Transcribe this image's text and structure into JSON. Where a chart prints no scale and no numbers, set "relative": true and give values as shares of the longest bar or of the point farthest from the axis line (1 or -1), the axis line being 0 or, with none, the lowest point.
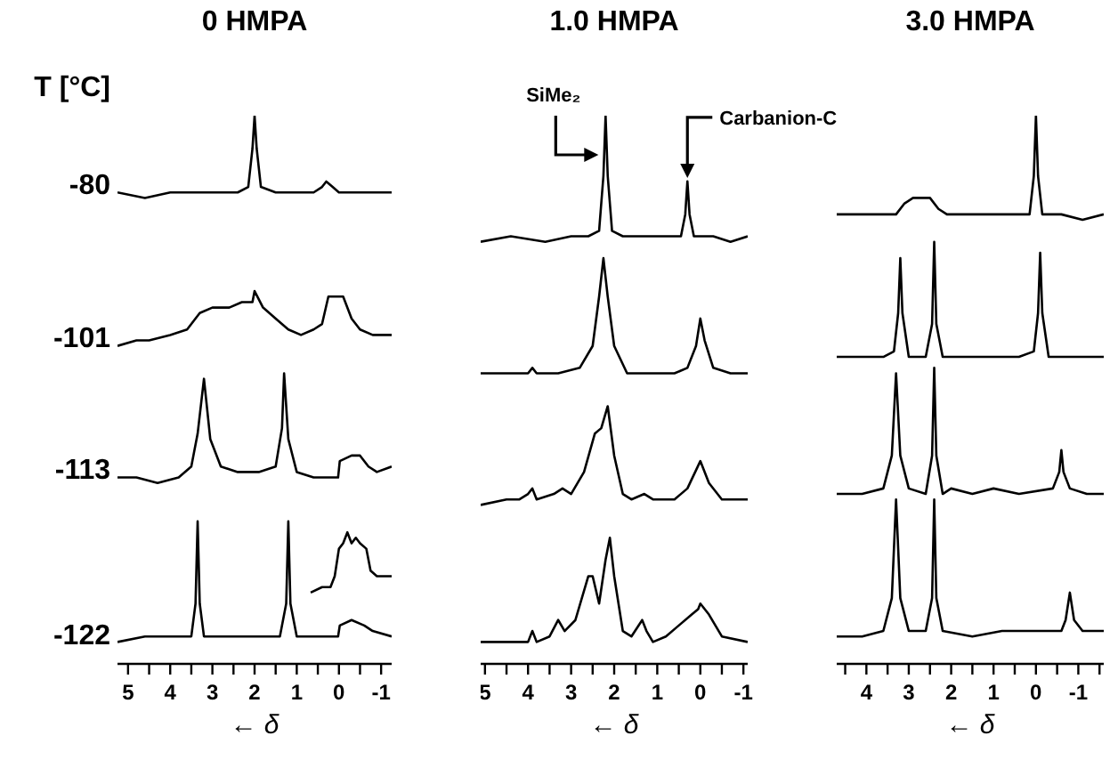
{
  "chart_data": [
    {
      "type": "line",
      "relative": true,
      "title": "0 HMPA",
      "xlabel": "← δ",
      "annotations": [
        "T [°C]"
      ],
      "xlim": [
        5.25,
        -1.25
      ],
      "xticks": [
        5,
        {
          "value": 4.5,
          "label": null
        },
        4,
        {
          "value": 3.5,
          "label": null
        },
        3,
        {
          "value": 2.5,
          "label": null
        },
        2,
        {
          "value": 1.5,
          "label": null
        },
        1,
        {
          "value": 0.5,
          "label": null
        },
        0,
        {
          "value": -0.5,
          "label": null
        },
        -1
      ],
      "series": [
        {
          "name": "-80",
          "color": "#000000",
          "x": [
            5.25,
            4.6,
            4,
            3.4,
            2.8,
            2.4,
            2.15,
            2.05,
            2.0,
            1.95,
            1.85,
            1.5,
            0.9,
            0.6,
            0.4,
            0.3,
            0.15,
            0.0,
            -0.4,
            -0.8,
            -1.25
          ],
          "values": [
            0.86,
            0.85,
            0.86,
            0.86,
            0.86,
            0.86,
            0.87,
            0.94,
            1,
            0.94,
            0.87,
            0.86,
            0.86,
            0.86,
            0.87,
            0.88,
            0.87,
            0.86,
            0.86,
            0.86,
            0.86
          ]
        },
        {
          "name": "-101",
          "color": "#000000",
          "x": [
            5.25,
            4.8,
            4.5,
            4,
            3.6,
            3.3,
            3,
            2.6,
            2.3,
            2.05,
            2.0,
            1.8,
            1.5,
            1.2,
            0.9,
            0.6,
            0.4,
            0.25,
            0.1,
            -0.1,
            -0.3,
            -0.5,
            -0.8,
            -1.25
          ],
          "values": [
            0.58,
            0.59,
            0.59,
            0.6,
            0.61,
            0.64,
            0.65,
            0.65,
            0.66,
            0.66,
            0.68,
            0.65,
            0.63,
            0.61,
            0.6,
            0.61,
            0.62,
            0.67,
            0.67,
            0.67,
            0.63,
            0.61,
            0.6,
            0.6
          ]
        },
        {
          "name": "-113",
          "color": "#000000",
          "x": [
            5.25,
            4.8,
            4.3,
            3.8,
            3.5,
            3.35,
            3.2,
            3.05,
            2.8,
            2.4,
            1.9,
            1.5,
            1.35,
            1.3,
            1.2,
            1.0,
            0.6,
            0.3,
            0.02,
            -0.02,
            -0.3,
            -0.5,
            -0.7,
            -0.9,
            -1.25
          ],
          "values": [
            0.34,
            0.34,
            0.33,
            0.34,
            0.36,
            0.42,
            0.52,
            0.41,
            0.36,
            0.35,
            0.35,
            0.36,
            0.43,
            0.53,
            0.41,
            0.35,
            0.34,
            0.34,
            0.34,
            0.37,
            0.38,
            0.38,
            0.36,
            0.35,
            0.36
          ]
        },
        {
          "name": "-122",
          "color": "#000000",
          "x": [
            5.25,
            4.6,
            4.0,
            3.5,
            3.4,
            3.35,
            3.3,
            3.2,
            2.8,
            2.0,
            1.4,
            1.25,
            1.2,
            1.15,
            1.0,
            0.6,
            0.1,
            0.02,
            -0.02,
            -0.3,
            -0.6,
            -0.8,
            -1.25
          ],
          "values": [
            0.04,
            0.05,
            0.05,
            0.05,
            0.11,
            0.26,
            0.11,
            0.05,
            0.05,
            0.05,
            0.05,
            0.11,
            0.26,
            0.11,
            0.05,
            0.05,
            0.05,
            0.05,
            0.07,
            0.08,
            0.07,
            0.06,
            0.05
          ]
        },
        {
          "color": "#000000",
          "x": [
            0.67,
            0.4,
            0.2,
            0.1,
            0.0,
            -0.1,
            -0.2,
            -0.3,
            -0.4,
            -0.5,
            -0.65,
            -0.75,
            -0.9,
            -1.25
          ],
          "values": [
            0.13,
            0.14,
            0.14,
            0.16,
            0.21,
            0.22,
            0.24,
            0.22,
            0.23,
            0.22,
            0.21,
            0.17,
            0.16,
            0.16
          ]
        }
      ]
    },
    {
      "type": "line",
      "relative": true,
      "title": "1.0 HMPA",
      "xlabel": "← δ",
      "annotations": [
        {
          "text": "SiMe₂",
          "x": 2.2,
          "y": 1
        },
        {
          "text": "Carbanion-C",
          "x": 0.3,
          "y": 0.88
        }
      ],
      "xlim": [
        5.1,
        -1.1
      ],
      "xticks": [
        5,
        {
          "value": 4.5,
          "label": null
        },
        4,
        {
          "value": 3.5,
          "label": null
        },
        3,
        {
          "value": 2.5,
          "label": null
        },
        2,
        {
          "value": 1.5,
          "label": null
        },
        1,
        {
          "value": 0.5,
          "label": null
        },
        0,
        {
          "value": -0.5,
          "label": null
        },
        -1
      ],
      "series": [
        {
          "color": "#000000",
          "x": [
            5.1,
            4.4,
            3.6,
            3,
            2.6,
            2.35,
            2.25,
            2.2,
            2.15,
            2.05,
            1.8,
            1.2,
            0.7,
            0.45,
            0.35,
            0.3,
            0.25,
            0.15,
            -0.3,
            -0.7,
            -1.1
          ],
          "values": [
            0.77,
            0.78,
            0.77,
            0.78,
            0.78,
            0.79,
            0.89,
            1,
            0.89,
            0.79,
            0.78,
            0.78,
            0.78,
            0.78,
            0.82,
            0.88,
            0.82,
            0.78,
            0.78,
            0.77,
            0.78
          ]
        },
        {
          "color": "#000000",
          "x": [
            5.1,
            4.5,
            4.0,
            3.9,
            3.8,
            3.3,
            2.8,
            2.5,
            2.35,
            2.25,
            2.15,
            2.0,
            1.7,
            1.2,
            0.6,
            0.3,
            0.1,
            0.0,
            -0.1,
            -0.3,
            -0.7,
            -1.1
          ],
          "values": [
            0.53,
            0.53,
            0.53,
            0.54,
            0.53,
            0.53,
            0.54,
            0.58,
            0.67,
            0.74,
            0.67,
            0.58,
            0.53,
            0.53,
            0.53,
            0.54,
            0.58,
            0.63,
            0.59,
            0.54,
            0.53,
            0.53
          ]
        },
        {
          "color": "#000000",
          "x": [
            5.1,
            4.5,
            4.2,
            4.0,
            3.9,
            3.8,
            3.4,
            3.2,
            3.0,
            2.7,
            2.45,
            2.3,
            2.15,
            2.0,
            1.8,
            1.6,
            1.3,
            1.1,
            0.6,
            0.3,
            0.0,
            -0.2,
            -0.5,
            -1.1
          ],
          "values": [
            0.29,
            0.3,
            0.3,
            0.31,
            0.32,
            0.3,
            0.31,
            0.32,
            0.31,
            0.35,
            0.42,
            0.43,
            0.47,
            0.38,
            0.31,
            0.3,
            0.31,
            0.3,
            0.3,
            0.32,
            0.37,
            0.33,
            0.3,
            0.3
          ]
        },
        {
          "color": "#000000",
          "x": [
            5.1,
            4.5,
            4.0,
            3.9,
            3.8,
            3.5,
            3.3,
            3.15,
            2.9,
            2.6,
            2.5,
            2.35,
            2.2,
            2.1,
            2.0,
            1.8,
            1.6,
            1.35,
            1.25,
            1.1,
            0.8,
            0.5,
            0.2,
            0.05,
            0.0,
            -0.2,
            -0.5,
            -1.1
          ],
          "values": [
            0.04,
            0.04,
            0.04,
            0.06,
            0.04,
            0.05,
            0.08,
            0.06,
            0.08,
            0.16,
            0.16,
            0.11,
            0.19,
            0.23,
            0.16,
            0.06,
            0.05,
            0.08,
            0.06,
            0.04,
            0.05,
            0.07,
            0.09,
            0.1,
            0.11,
            0.09,
            0.05,
            0.04
          ]
        }
      ]
    },
    {
      "type": "line",
      "relative": true,
      "title": "3.0 HMPA",
      "xlabel": "← δ",
      "xlim": [
        4.7,
        -1.6
      ],
      "xticks": [
        {
          "value": 4.5,
          "label": null
        },
        4,
        {
          "value": 3.5,
          "label": null
        },
        3,
        {
          "value": 2.5,
          "label": null
        },
        2,
        {
          "value": 1.5,
          "label": null
        },
        1,
        {
          "value": 0.5,
          "label": null
        },
        0,
        {
          "value": -0.5,
          "label": null
        },
        -1,
        {
          "value": -1.5,
          "label": null
        }
      ],
      "series": [
        {
          "color": "#000000",
          "x": [
            4.7,
            4.2,
            3.7,
            3.3,
            3.1,
            2.9,
            2.7,
            2.5,
            2.3,
            2.1,
            1.6,
            1,
            0.5,
            0.15,
            0.05,
            0.0,
            -0.05,
            -0.15,
            -0.6,
            -1.1,
            -1.6
          ],
          "values": [
            0.82,
            0.82,
            0.82,
            0.82,
            0.84,
            0.85,
            0.85,
            0.85,
            0.83,
            0.82,
            0.82,
            0.82,
            0.82,
            0.82,
            0.89,
            1,
            0.89,
            0.82,
            0.82,
            0.81,
            0.82
          ]
        },
        {
          "color": "#000000",
          "x": [
            4.7,
            4.1,
            3.6,
            3.35,
            3.25,
            3.2,
            3.15,
            3.0,
            2.6,
            2.45,
            2.4,
            2.35,
            2.2,
            1.6,
            1.0,
            0.4,
            0.05,
            -0.05,
            -0.1,
            -0.15,
            -0.3,
            -0.9,
            -1.6
          ],
          "values": [
            0.56,
            0.56,
            0.56,
            0.57,
            0.64,
            0.74,
            0.64,
            0.56,
            0.56,
            0.62,
            0.77,
            0.62,
            0.56,
            0.56,
            0.56,
            0.56,
            0.57,
            0.64,
            0.75,
            0.64,
            0.56,
            0.56,
            0.56
          ]
        },
        {
          "color": "#000000",
          "x": [
            4.7,
            4.1,
            3.6,
            3.4,
            3.3,
            3.2,
            3.0,
            2.6,
            2.45,
            2.4,
            2.35,
            2.2,
            2.0,
            1.5,
            1.0,
            0.4,
            -0.4,
            -0.55,
            -0.6,
            -0.65,
            -0.8,
            -1.2,
            -1.6
          ],
          "values": [
            0.31,
            0.31,
            0.32,
            0.38,
            0.53,
            0.38,
            0.32,
            0.31,
            0.38,
            0.54,
            0.38,
            0.31,
            0.32,
            0.31,
            0.32,
            0.31,
            0.32,
            0.35,
            0.39,
            0.35,
            0.32,
            0.31,
            0.31
          ]
        },
        {
          "color": "#000000",
          "x": [
            4.7,
            4.1,
            3.6,
            3.4,
            3.3,
            3.2,
            3.0,
            2.6,
            2.45,
            2.4,
            2.35,
            2.2,
            1.5,
            0.8,
            0,
            -0.6,
            -0.7,
            -0.8,
            -0.9,
            -1.1,
            -1.6
          ],
          "values": [
            0.05,
            0.05,
            0.06,
            0.12,
            0.3,
            0.12,
            0.06,
            0.06,
            0.12,
            0.3,
            0.12,
            0.06,
            0.05,
            0.06,
            0.06,
            0.06,
            0.08,
            0.13,
            0.08,
            0.06,
            0.06
          ]
        }
      ]
    }
  ]
}
